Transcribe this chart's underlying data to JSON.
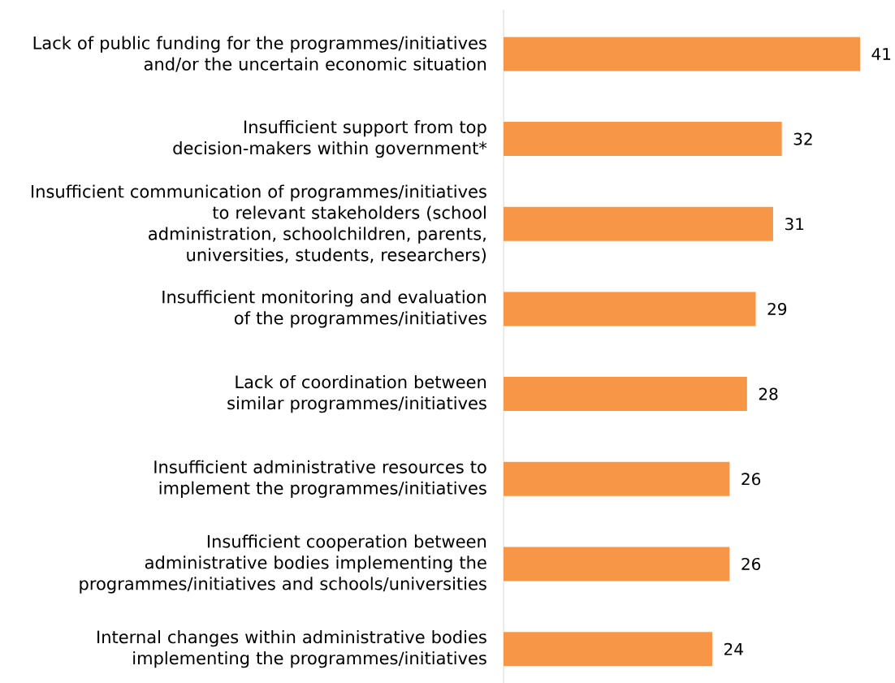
{
  "chart_data": {
    "type": "bar",
    "orientation": "horizontal",
    "categories": [
      "Lack of public funding for the programmes/initiatives and/or the uncertain economic situation",
      "Insufficient support from top decision-makers within government*",
      "Insufficient communication of programmes/initiatives to relevant stakeholders (school administration, schoolchildren, parents, universities, students, researchers)",
      "Insufficient monitoring and evaluation of the programmes/initiatives",
      "Lack of coordination between similar programmes/initiatives",
      "Insufficient administrative resources to implement the programmes/initiatives",
      "Insufficient cooperation between administrative bodies implementing the programmes/initiatives and schools/universities",
      "Internal changes within administrative bodies implementing the programmes/initiatives"
    ],
    "values": [
      41,
      32,
      31,
      29,
      28,
      26,
      26,
      24
    ],
    "color": "#f79646",
    "data_labels": true
  }
}
